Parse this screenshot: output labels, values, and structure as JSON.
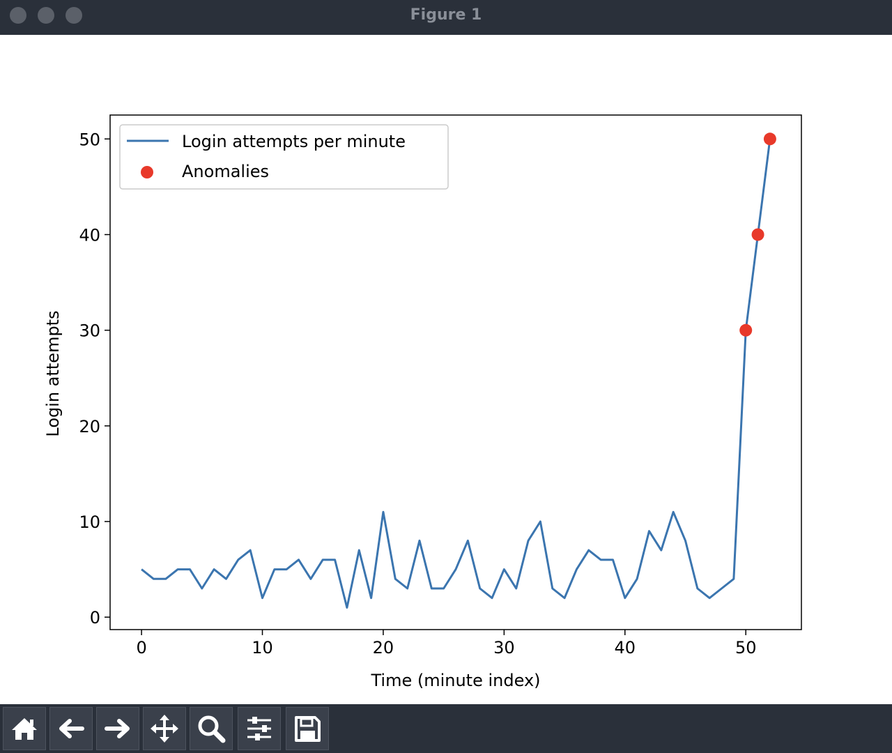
{
  "window": {
    "title": "Figure 1"
  },
  "toolbar": {
    "buttons": [
      {
        "name": "home-button",
        "icon": "home-icon"
      },
      {
        "name": "back-button",
        "icon": "arrow-left-icon"
      },
      {
        "name": "forward-button",
        "icon": "arrow-right-icon"
      },
      {
        "name": "pan-button",
        "icon": "move-icon"
      },
      {
        "name": "zoom-button",
        "icon": "magnifier-icon"
      },
      {
        "name": "configure-subplots-button",
        "icon": "sliders-icon"
      },
      {
        "name": "save-button",
        "icon": "floppy-disk-icon"
      }
    ]
  },
  "chart_data": {
    "type": "line",
    "xlabel": "Time (minute index)",
    "ylabel": "Login attempts",
    "xlim": [
      -2.6,
      54.6
    ],
    "ylim": [
      -1.3,
      52.5
    ],
    "xticks": [
      0,
      10,
      20,
      30,
      40,
      50
    ],
    "yticks": [
      0,
      10,
      20,
      30,
      40,
      50
    ],
    "grid": false,
    "legend_position": "top-left",
    "series": [
      {
        "name": "Login attempts per minute",
        "type": "line",
        "color": "#3b75af",
        "x": [
          0,
          1,
          2,
          3,
          4,
          5,
          6,
          7,
          8,
          9,
          10,
          11,
          12,
          13,
          14,
          15,
          16,
          17,
          18,
          19,
          20,
          21,
          22,
          23,
          24,
          25,
          26,
          27,
          28,
          29,
          30,
          31,
          32,
          33,
          34,
          35,
          36,
          37,
          38,
          39,
          40,
          41,
          42,
          43,
          44,
          45,
          46,
          47,
          48,
          49,
          50,
          51,
          52
        ],
        "values": [
          5,
          4,
          4,
          5,
          5,
          3,
          5,
          4,
          6,
          7,
          2,
          5,
          5,
          6,
          4,
          6,
          6,
          1,
          7,
          2,
          11,
          4,
          3,
          8,
          3,
          3,
          5,
          8,
          3,
          2,
          5,
          3,
          8,
          10,
          3,
          2,
          5,
          7,
          6,
          6,
          2,
          4,
          9,
          7,
          11,
          8,
          3,
          2,
          3,
          4,
          30,
          40,
          50
        ]
      },
      {
        "name": "Anomalies",
        "type": "scatter",
        "color": "#e8392a",
        "x": [
          50,
          51,
          52
        ],
        "values": [
          30,
          40,
          50
        ]
      }
    ]
  }
}
